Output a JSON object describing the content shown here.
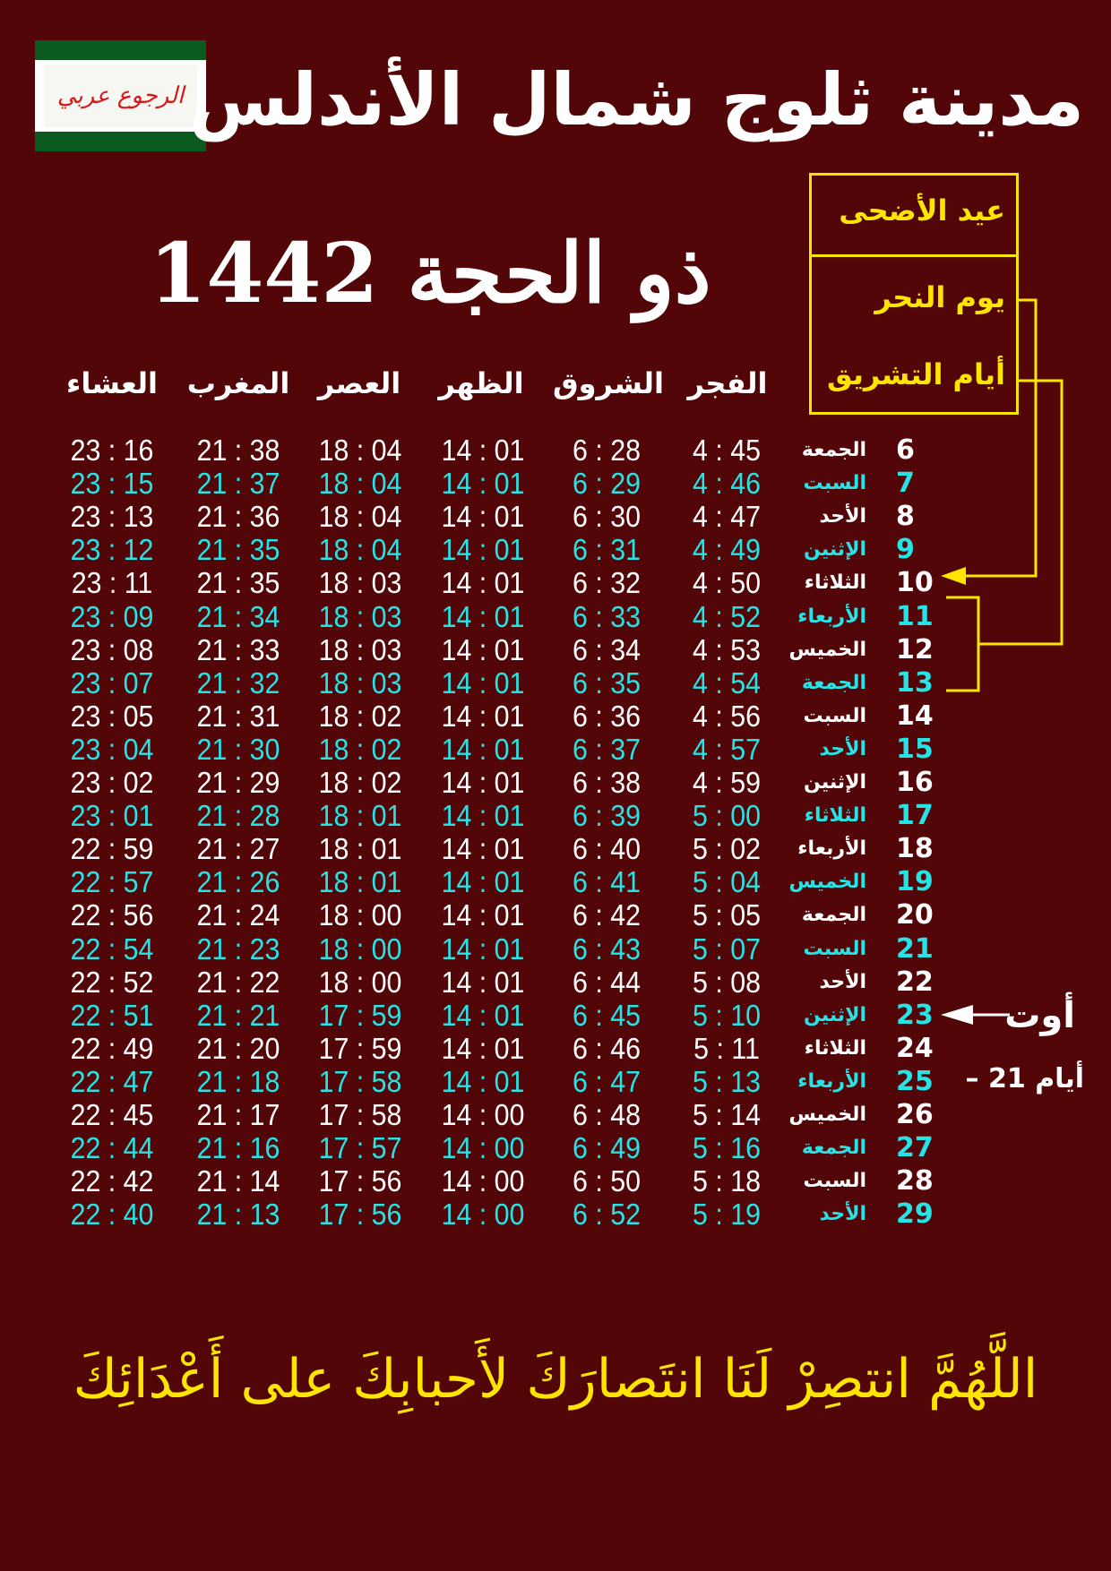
{
  "logo_text": "الرجوع عربي",
  "colors": {
    "background": "#520607",
    "highlight": "#26e3e6",
    "accent": "#ffe500",
    "flag_green": "#0b5a20"
  },
  "title": "مدينة ثلوج شمال الأندلس",
  "month": "ذو الحجة 1442",
  "legend": {
    "eid": "عيد الأضحى",
    "nahr": "يوم النحر",
    "tashreeq": "أيام التشريق"
  },
  "headers": {
    "fajr": "الفجر",
    "shurooq": "الشروق",
    "dhuhr": "الظهر",
    "asr": "العصر",
    "maghrib": "المغرب",
    "isha": "العشاء"
  },
  "rows": [
    {
      "day": "6",
      "weekday": "الجمعة",
      "fajr": "4 : 45",
      "shurooq": "6 : 28",
      "dhuhr": "14 : 01",
      "asr": "18 : 04",
      "maghrib": "21 : 38",
      "isha": "23 : 16"
    },
    {
      "day": "7",
      "weekday": "السبت",
      "fajr": "4 : 46",
      "shurooq": "6 : 29",
      "dhuhr": "14 : 01",
      "asr": "18 : 04",
      "maghrib": "21 : 37",
      "isha": "23 : 15"
    },
    {
      "day": "8",
      "weekday": "الأحد",
      "fajr": "4 : 47",
      "shurooq": "6 : 30",
      "dhuhr": "14 : 01",
      "asr": "18 : 04",
      "maghrib": "21 : 36",
      "isha": "23 : 13"
    },
    {
      "day": "9",
      "weekday": "الإثنين",
      "fajr": "4 : 49",
      "shurooq": "6 : 31",
      "dhuhr": "14 : 01",
      "asr": "18 : 04",
      "maghrib": "21 : 35",
      "isha": "23 : 12"
    },
    {
      "day": "10",
      "weekday": "الثلاثاء",
      "fajr": "4 : 50",
      "shurooq": "6 : 32",
      "dhuhr": "14 : 01",
      "asr": "18 : 03",
      "maghrib": "21 : 35",
      "isha": "23 : 11"
    },
    {
      "day": "11",
      "weekday": "الأربعاء",
      "fajr": "4 : 52",
      "shurooq": "6 : 33",
      "dhuhr": "14 : 01",
      "asr": "18 : 03",
      "maghrib": "21 : 34",
      "isha": "23 : 09"
    },
    {
      "day": "12",
      "weekday": "الخميس",
      "fajr": "4 : 53",
      "shurooq": "6 : 34",
      "dhuhr": "14 : 01",
      "asr": "18 : 03",
      "maghrib": "21 : 33",
      "isha": "23 : 08"
    },
    {
      "day": "13",
      "weekday": "الجمعة",
      "fajr": "4 : 54",
      "shurooq": "6 : 35",
      "dhuhr": "14 : 01",
      "asr": "18 : 03",
      "maghrib": "21 : 32",
      "isha": "23 : 07"
    },
    {
      "day": "14",
      "weekday": "السبت",
      "fajr": "4 : 56",
      "shurooq": "6 : 36",
      "dhuhr": "14 : 01",
      "asr": "18 : 02",
      "maghrib": "21 : 31",
      "isha": "23 : 05"
    },
    {
      "day": "15",
      "weekday": "الأحد",
      "fajr": "4 : 57",
      "shurooq": "6 : 37",
      "dhuhr": "14 : 01",
      "asr": "18 : 02",
      "maghrib": "21 : 30",
      "isha": "23 : 04"
    },
    {
      "day": "16",
      "weekday": "الإثنين",
      "fajr": "4 : 59",
      "shurooq": "6 : 38",
      "dhuhr": "14 : 01",
      "asr": "18 : 02",
      "maghrib": "21 : 29",
      "isha": "23 : 02"
    },
    {
      "day": "17",
      "weekday": "الثلاثاء",
      "fajr": "5 : 00",
      "shurooq": "6 : 39",
      "dhuhr": "14 : 01",
      "asr": "18 : 01",
      "maghrib": "21 : 28",
      "isha": "23 : 01"
    },
    {
      "day": "18",
      "weekday": "الأربعاء",
      "fajr": "5 : 02",
      "shurooq": "6 : 40",
      "dhuhr": "14 : 01",
      "asr": "18 : 01",
      "maghrib": "21 : 27",
      "isha": "22 : 59"
    },
    {
      "day": "19",
      "weekday": "الخميس",
      "fajr": "5 : 04",
      "shurooq": "6 : 41",
      "dhuhr": "14 : 01",
      "asr": "18 : 01",
      "maghrib": "21 : 26",
      "isha": "22 : 57"
    },
    {
      "day": "20",
      "weekday": "الجمعة",
      "fajr": "5 : 05",
      "shurooq": "6 : 42",
      "dhuhr": "14 : 01",
      "asr": "18 : 00",
      "maghrib": "21 : 24",
      "isha": "22 : 56"
    },
    {
      "day": "21",
      "weekday": "السبت",
      "fajr": "5 : 07",
      "shurooq": "6 : 43",
      "dhuhr": "14 : 01",
      "asr": "18 : 00",
      "maghrib": "21 : 23",
      "isha": "22 : 54"
    },
    {
      "day": "22",
      "weekday": "الأحد",
      "fajr": "5 : 08",
      "shurooq": "6 : 44",
      "dhuhr": "14 : 01",
      "asr": "18 : 00",
      "maghrib": "21 : 22",
      "isha": "22 : 52"
    },
    {
      "day": "23",
      "weekday": "الإثنين",
      "fajr": "5 : 10",
      "shurooq": "6 : 45",
      "dhuhr": "14 : 01",
      "asr": "17 : 59",
      "maghrib": "21 : 21",
      "isha": "22 : 51"
    },
    {
      "day": "24",
      "weekday": "الثلاثاء",
      "fajr": "5 : 11",
      "shurooq": "6 : 46",
      "dhuhr": "14 : 01",
      "asr": "17 : 59",
      "maghrib": "21 : 20",
      "isha": "22 : 49"
    },
    {
      "day": "25",
      "weekday": "الأربعاء",
      "fajr": "5 : 13",
      "shurooq": "6 : 47",
      "dhuhr": "14 : 01",
      "asr": "17 : 58",
      "maghrib": "21 : 18",
      "isha": "22 : 47"
    },
    {
      "day": "26",
      "weekday": "الخميس",
      "fajr": "5 : 14",
      "shurooq": "6 : 48",
      "dhuhr": "14 : 00",
      "asr": "17 : 58",
      "maghrib": "21 : 17",
      "isha": "22 : 45"
    },
    {
      "day": "27",
      "weekday": "الجمعة",
      "fajr": "5 : 16",
      "shurooq": "6 : 49",
      "dhuhr": "14 : 00",
      "asr": "17 : 57",
      "maghrib": "21 : 16",
      "isha": "22 : 44"
    },
    {
      "day": "28",
      "weekday": "السبت",
      "fajr": "5 : 18",
      "shurooq": "6 : 50",
      "dhuhr": "14 : 00",
      "asr": "17 : 56",
      "maghrib": "21 : 14",
      "isha": "22 : 42"
    },
    {
      "day": "29",
      "weekday": "الأحد",
      "fajr": "5 : 19",
      "shurooq": "6 : 52",
      "dhuhr": "14 : 00",
      "asr": "17 : 56",
      "maghrib": "21 : 13",
      "isha": "22 : 40"
    }
  ],
  "august_note": {
    "label": "أوت",
    "offset": "– 21 أيام"
  },
  "dua": "اللَّهُمَّ انتصِرْ لَنَا انتَصارَكَ لأَحبابِكَ على أَعْدَائِكَ"
}
